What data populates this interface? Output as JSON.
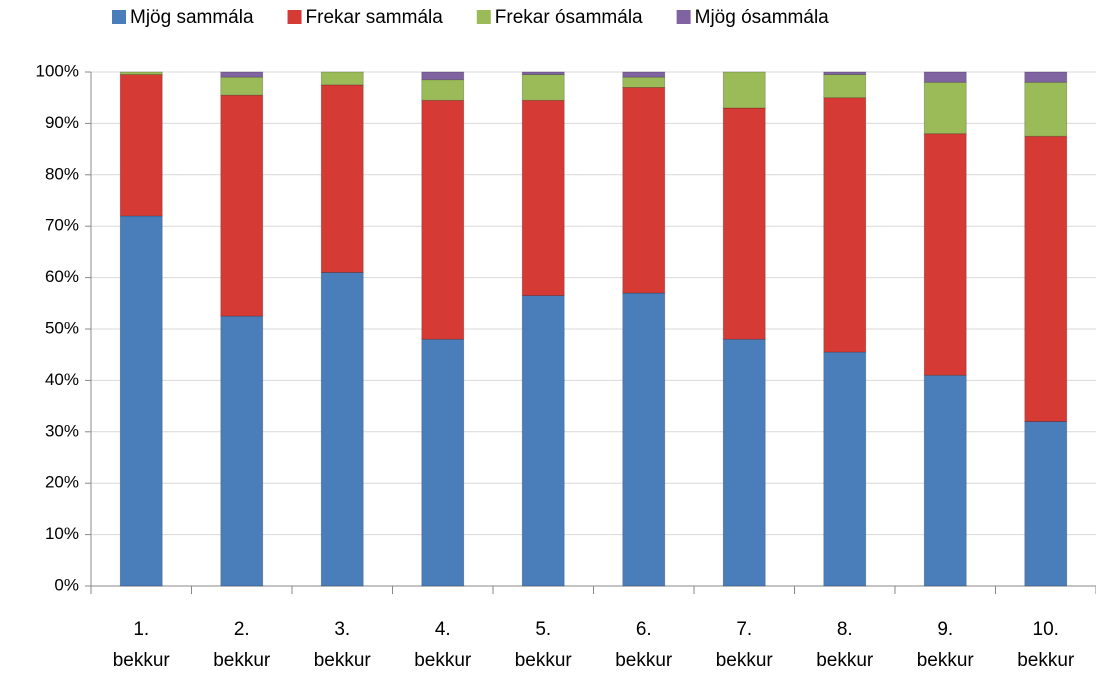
{
  "chart_data": {
    "type": "stacked_bar",
    "categories": [
      "1. bekkur",
      "2. bekkur",
      "3. bekkur",
      "4. bekkur",
      "5. bekkur",
      "6. bekkur",
      "7. bekkur",
      "8. bekkur",
      "9. bekkur",
      "10. bekkur"
    ],
    "series": [
      {
        "name": "Mjög sammála",
        "color": "#4a7ebb",
        "values": [
          72,
          52.5,
          61,
          48,
          56.5,
          57,
          48,
          45.5,
          41,
          32
        ]
      },
      {
        "name": "Frekar sammála",
        "color": "#d63a35",
        "values": [
          27.5,
          43,
          36.5,
          46.5,
          38,
          40,
          45,
          49.5,
          47,
          55.5
        ]
      },
      {
        "name": "Frekar ósammála",
        "color": "#9bbb59",
        "values": [
          0.5,
          3.5,
          2.5,
          4,
          5,
          2,
          7,
          4.5,
          10,
          10.5
        ]
      },
      {
        "name": "Mjög ósammála",
        "color": "#8064a2",
        "values": [
          0,
          1,
          0,
          1.5,
          0.5,
          1,
          0,
          0.5,
          2,
          2
        ]
      }
    ],
    "ylim": [
      0,
      100
    ],
    "yticks": [
      {
        "value": 0,
        "label": "0%"
      },
      {
        "value": 10,
        "label": "10%"
      },
      {
        "value": 20,
        "label": "20%"
      },
      {
        "value": 30,
        "label": "30%"
      },
      {
        "value": 40,
        "label": "40%"
      },
      {
        "value": 50,
        "label": "50%"
      },
      {
        "value": 60,
        "label": "60%"
      },
      {
        "value": 70,
        "label": "70%"
      },
      {
        "value": 80,
        "label": "80%"
      },
      {
        "value": 90,
        "label": "90%"
      },
      {
        "value": 100,
        "label": "100%"
      }
    ],
    "grid": true,
    "legend": "top"
  }
}
